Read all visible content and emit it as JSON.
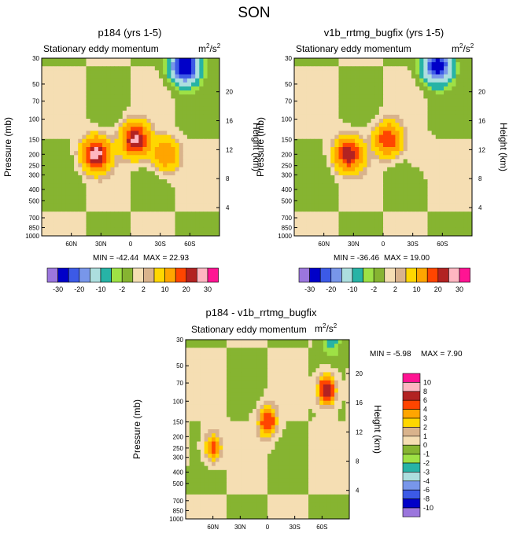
{
  "page_title": "SON",
  "chart_data": [
    {
      "type": "heatmap",
      "title": "p184 (yrs 1-5)",
      "subtitle": "Stationary eddy momentum",
      "units_base": "m",
      "units_sup1": "2",
      "units_mid": "/s",
      "units_sup2": "2",
      "ylabel": "Pressure (mb)",
      "y2label": "Height (km)",
      "pressure_ticks": [
        "30",
        "50",
        "70",
        "100",
        "150",
        "200",
        "250",
        "300",
        "400",
        "500",
        "700",
        "850",
        "1000"
      ],
      "height_ticks": [
        "20",
        "16",
        "12",
        "8",
        "4"
      ],
      "lat_ticks": [
        "60N",
        "30N",
        "0",
        "30S",
        "60S"
      ],
      "min_label": "MIN = -42.44",
      "max_label": "MAX =  22.93",
      "min": -42.44,
      "max": 22.93,
      "features": [
        {
          "lat": 35,
          "p": 200,
          "peak": 22.9
        },
        {
          "lat": -5,
          "p": 150,
          "peak": 22.0
        },
        {
          "lat": -35,
          "p": 200,
          "peak": 10.0
        },
        {
          "lat": -55,
          "p": 35,
          "peak": -30.0
        }
      ]
    },
    {
      "type": "heatmap",
      "title": "v1b_rrtmg_bugfix (yrs 1-5)",
      "subtitle": "Stationary eddy momentum",
      "units_base": "m",
      "units_sup1": "2",
      "units_mid": "/s",
      "units_sup2": "2",
      "ylabel": "Pressure (mb)",
      "y2label": "Height (km)",
      "pressure_ticks": [
        "30",
        "50",
        "70",
        "100",
        "150",
        "200",
        "250",
        "300",
        "400",
        "500",
        "700",
        "850",
        "1000"
      ],
      "height_ticks": [
        "20",
        "16",
        "12",
        "8",
        "4"
      ],
      "lat_ticks": [
        "60N",
        "30N",
        "0",
        "30S",
        "60S"
      ],
      "min_label": "MIN = -36.46",
      "max_label": "MAX =  19.00",
      "min": -36.46,
      "max": 19.0,
      "features": [
        {
          "lat": 35,
          "p": 200,
          "peak": 19.0
        },
        {
          "lat": -5,
          "p": 150,
          "peak": 15.0
        },
        {
          "lat": -35,
          "p": 200,
          "peak": 1.0
        },
        {
          "lat": -55,
          "p": 35,
          "peak": -25.0
        }
      ]
    },
    {
      "type": "heatmap",
      "title": "p184 - v1b_rrtmg_bugfix",
      "subtitle": "Stationary eddy momentum",
      "units_base": "m",
      "units_sup1": "2",
      "units_mid": "/s",
      "units_sup2": "2",
      "ylabel": "Pressure (mb)",
      "y2label": "Height (km)",
      "pressure_ticks": [
        "30",
        "50",
        "70",
        "100",
        "150",
        "200",
        "250",
        "300",
        "400",
        "500",
        "700",
        "850",
        "1000"
      ],
      "height_ticks": [
        "20",
        "16",
        "12",
        "8",
        "4"
      ],
      "lat_ticks": [
        "60N",
        "30N",
        "0",
        "30S",
        "60S"
      ],
      "min_label": "MIN =  -5.98",
      "max_label": "MAX =   7.90",
      "min": -5.98,
      "max": 7.9,
      "features": [
        {
          "lat": 60,
          "p": 250,
          "peak": 5.0
        },
        {
          "lat": 0,
          "p": 150,
          "peak": 6.0
        },
        {
          "lat": -65,
          "p": 80,
          "peak": 7.9
        },
        {
          "lat": -70,
          "p": 30,
          "peak": -3.0
        }
      ]
    }
  ],
  "colorbar_top": {
    "colors": [
      "#9b76dd",
      "#0000c8",
      "#3c5ae6",
      "#7896ea",
      "#acdede",
      "#27b3a6",
      "#9ee145",
      "#86b431",
      "#f5deb3",
      "#d9b38c",
      "#ffd700",
      "#ffa500",
      "#ff4500",
      "#b22222",
      "#ffb6c1",
      "#ff1493"
    ],
    "labels": [
      "-30",
      "-20",
      "-10",
      "-2",
      "2",
      "10",
      "20",
      "30"
    ],
    "label_positions": [
      1,
      3,
      5,
      7,
      9,
      11,
      13,
      15
    ]
  },
  "colorbar_diff": {
    "colors": [
      "#9b76dd",
      "#0000c8",
      "#3c5ae6",
      "#7896ea",
      "#acdede",
      "#27b3a6",
      "#9ee145",
      "#86b431",
      "#f5deb3",
      "#d9b38c",
      "#ffd700",
      "#ffa500",
      "#ff4500",
      "#b22222",
      "#ffb6c1",
      "#ff1493"
    ],
    "labels": [
      "-10",
      "-8",
      "-6",
      "-4",
      "-3",
      "-2",
      "-1",
      "0",
      "1",
      "2",
      "3",
      "4",
      "6",
      "8",
      "10"
    ]
  }
}
